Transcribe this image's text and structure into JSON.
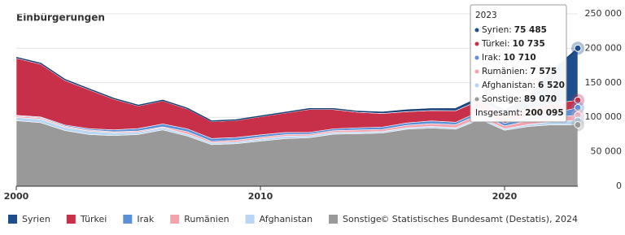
{
  "chart_data": {
    "type": "stacked_area",
    "title": "Einbürgerungen",
    "x": [
      2000,
      2001,
      2002,
      2003,
      2004,
      2005,
      2006,
      2007,
      2008,
      2009,
      2010,
      2011,
      2012,
      2013,
      2014,
      2015,
      2016,
      2017,
      2018,
      2019,
      2020,
      2021,
      2022,
      2023
    ],
    "xlim": [
      2000,
      2023
    ],
    "xticks": [
      2000,
      2010,
      2020
    ],
    "ylim": [
      0,
      250000
    ],
    "yticks": [
      0,
      {
        "value": 50000,
        "label": "50 000"
      },
      {
        "value": 100000,
        "label": "100 000"
      },
      {
        "value": 150000,
        "label": "150 000"
      },
      {
        "value": 200000,
        "label": "200 000"
      },
      {
        "value": 250000,
        "label": "250 000"
      }
    ],
    "series": [
      {
        "name": "Syrien",
        "color": "#1f4e8c",
        "values": [
          1000,
          1100,
          1200,
          1100,
          1000,
          900,
          900,
          900,
          800,
          800,
          900,
          900,
          1000,
          1100,
          1200,
          1700,
          2300,
          2500,
          2900,
          3900,
          6700,
          19100,
          48300,
          75485
        ]
      },
      {
        "name": "Türkei",
        "color": "#c8304a",
        "values": [
          82861,
          76573,
          64631,
          56244,
          44465,
          32661,
          33388,
          28861,
          24449,
          24647,
          26192,
          28103,
          33246,
          27970,
          22463,
          19695,
          16290,
          14984,
          16700,
          16235,
          11980,
          12200,
          14235,
          10735
        ]
      },
      {
        "name": "Irak",
        "color": "#5b8fd6",
        "values": [
          1000,
          1200,
          1500,
          2000,
          2700,
          3600,
          4100,
          4100,
          4200,
          4000,
          3500,
          3000,
          2700,
          2700,
          3200,
          3400,
          3450,
          4000,
          3500,
          4000,
          3800,
          5400,
          6200,
          10710
        ]
      },
      {
        "name": "Rumänien",
        "color": "#f4a3ad",
        "values": [
          2000,
          2000,
          1800,
          1500,
          1500,
          1800,
          1400,
          3500,
          2100,
          2400,
          2500,
          2400,
          2300,
          2500,
          3000,
          3000,
          3500,
          4000,
          4300,
          5000,
          4000,
          5400,
          6400,
          7575
        ]
      },
      {
        "name": "Afghanistan",
        "color": "#b9d6f2",
        "values": [
          4773,
          5111,
          4750,
          4948,
          4077,
          3133,
          3063,
          2831,
          2512,
          2570,
          2920,
          3500,
          2700,
          2500,
          2400,
          2300,
          2100,
          2400,
          2200,
          2900,
          2200,
          2800,
          4100,
          6520
        ]
      },
      {
        "name": "Sonstige",
        "color": "#999999",
        "values": [
          95054,
          92114,
          80666,
          74939,
          73411,
          75147,
          81715,
          72838,
          60409,
          61705,
          65558,
          68994,
          70402,
          75583,
          76159,
          77086,
          82743,
          84327,
          82740,
          96870,
          81200,
          86695,
          89310,
          89070
        ]
      }
    ],
    "tooltip": {
      "title": "2023",
      "rows": [
        {
          "label": "Syrien:",
          "value": "75 485"
        },
        {
          "label": "Türkei:",
          "value": "10 735"
        },
        {
          "label": "Irak:",
          "value": "10 710"
        },
        {
          "label": "Rumänien:",
          "value": "7 575"
        },
        {
          "label": "Afghanistan:",
          "value": "6 520"
        },
        {
          "label": "Sonstige:",
          "value": "89 070"
        }
      ],
      "total": {
        "label": "Insgesamt:",
        "value": "200 095"
      }
    },
    "source": "© Statistisches Bundesamt (Destatis), 2024"
  }
}
